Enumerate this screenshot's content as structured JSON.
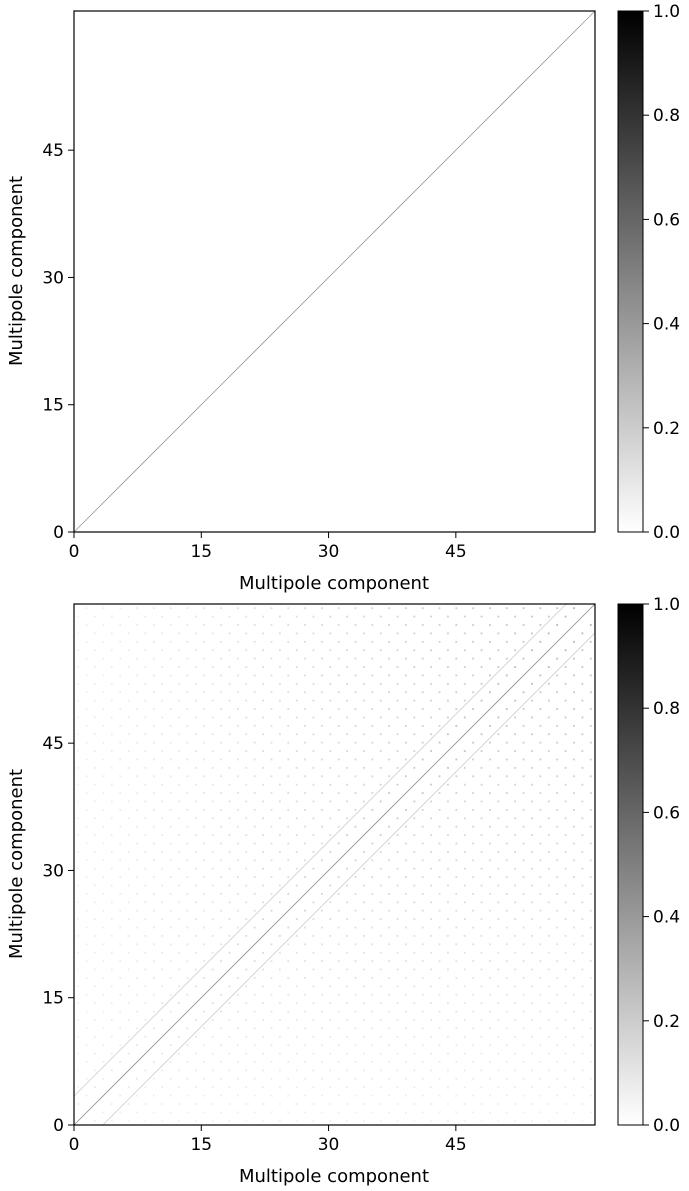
{
  "chart_data": [
    {
      "type": "heatmap",
      "title": "",
      "xlabel": "Multipole component",
      "ylabel": "Multipole component",
      "xticks": [
        0,
        15,
        30,
        45
      ],
      "yticks": [
        0,
        15,
        30,
        45
      ],
      "xlim": [
        0,
        61.4
      ],
      "ylim": [
        0,
        61.4
      ],
      "colormap": "grayscale (white = 0, black = 1)",
      "colorbar": {
        "ticks": [
          "0.0",
          "0.2",
          "0.4",
          "0.6",
          "0.8",
          "1.0"
        ],
        "vmin": 0.0,
        "vmax": 1.0
      },
      "pattern": "diagonal only",
      "diagonal_value": 0.4
    },
    {
      "type": "heatmap",
      "title": "",
      "xlabel": "Multipole component",
      "ylabel": "Multipole component",
      "xticks": [
        0,
        15,
        30,
        45
      ],
      "yticks": [
        0,
        15,
        30,
        45
      ],
      "xlim": [
        0,
        61.4
      ],
      "ylim": [
        0,
        61.4
      ],
      "colormap": "grayscale (white = 0, black = 1)",
      "colorbar": {
        "ticks": [
          "0.0",
          "0.2",
          "0.4",
          "0.6",
          "0.8",
          "1.0"
        ],
        "vmin": 0.0,
        "vmax": 1.0
      },
      "pattern": "strong diagonal with two faint off-diagonal bands and a weak checkerboard of small couplings",
      "diagonal_value": 0.45,
      "off_diagonal_band_value": 0.2,
      "background_coupling_max": 0.08
    }
  ]
}
